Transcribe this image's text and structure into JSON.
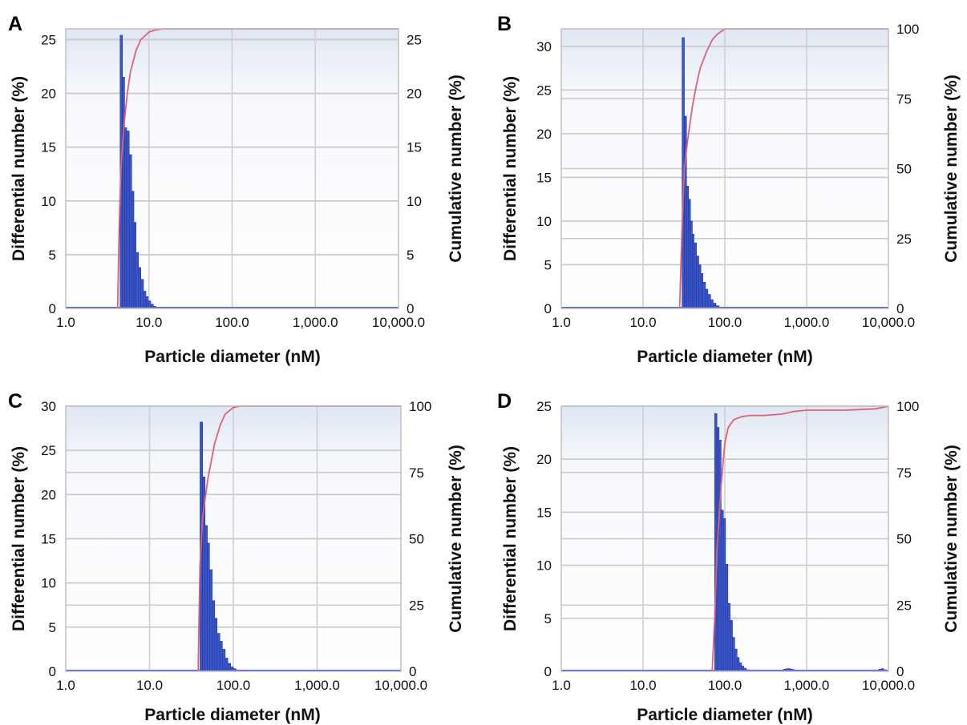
{
  "chart_data": [
    {
      "type": "bar",
      "panel": "A",
      "xlabel": "Particle diameter (nM)",
      "ylabel": "Differential number (%)",
      "y2label": "Cumulative number (%)",
      "xscale": "log",
      "xlim": [
        1,
        10000
      ],
      "x_ticks": [
        "1.0",
        "10.0",
        "100.0",
        "1,000.0",
        "10,000.0"
      ],
      "ylim": [
        0,
        26
      ],
      "y_ticks": [
        "0",
        "5",
        "10",
        "15",
        "20",
        "25"
      ],
      "y2lim": [
        0,
        26
      ],
      "y2_ticks": [
        "0",
        "5",
        "10",
        "15",
        "20",
        "25"
      ],
      "grid": true,
      "bars": {
        "x": [
          4.5,
          4.8,
          5.1,
          5.4,
          5.8,
          6.2,
          6.6,
          7.0,
          7.5,
          8.0,
          8.6,
          9.2,
          9.8,
          10.5,
          11.3,
          12.1
        ],
        "values": [
          25.4,
          21.5,
          16.8,
          16.5,
          14.3,
          10.9,
          8.0,
          5.2,
          3.8,
          2.7,
          1.6,
          1.1,
          0.7,
          0.4,
          0.2,
          0.1
        ]
      },
      "cumulative": {
        "x": [
          4.2,
          4.4,
          4.6,
          5.0,
          5.5,
          6.0,
          7.0,
          8.0,
          10.0,
          12.0,
          15.0,
          10000
        ],
        "values": [
          0,
          8,
          13,
          17,
          20,
          22,
          24,
          25,
          25.7,
          25.9,
          26,
          26
        ]
      }
    },
    {
      "type": "bar",
      "panel": "B",
      "xlabel": "Particle diameter (nM)",
      "ylabel": "Differential number (%)",
      "y2label": "Cumulative number (%)",
      "xscale": "log",
      "xlim": [
        1,
        10000
      ],
      "x_ticks": [
        "1.0",
        "10.0",
        "100.0",
        "1,000.0",
        "10,000.0"
      ],
      "ylim": [
        0,
        32
      ],
      "y_ticks": [
        "0",
        "5",
        "10",
        "15",
        "20",
        "25",
        "30"
      ],
      "y2lim": [
        0,
        100
      ],
      "y2_ticks": [
        "0",
        "25",
        "50",
        "75",
        "100"
      ],
      "grid": true,
      "bars": {
        "x": [
          30,
          32,
          34,
          36,
          38,
          40,
          42,
          45,
          48,
          51,
          54,
          58,
          62,
          67,
          72,
          78,
          85,
          92
        ],
        "values": [
          31,
          22,
          14,
          12.5,
          10,
          8.5,
          7.5,
          6,
          5,
          4,
          3,
          2.2,
          1.6,
          1.0,
          0.6,
          0.3,
          0.15,
          0.05
        ]
      },
      "cumulative": {
        "x": [
          28,
          30,
          32,
          35,
          40,
          45,
          50,
          60,
          70,
          80,
          100,
          10000
        ],
        "values": [
          0,
          30,
          50,
          60,
          72,
          80,
          86,
          92,
          96,
          98,
          100,
          100
        ]
      }
    },
    {
      "type": "bar",
      "panel": "C",
      "xlabel": "Particle diameter (nM)",
      "ylabel": "Differential number (%)",
      "y2label": "Cumulative number (%)",
      "xscale": "log",
      "xlim": [
        1,
        10000
      ],
      "x_ticks": [
        "1.0",
        "10.0",
        "100.0",
        "1,000.0",
        "10,000.0"
      ],
      "ylim": [
        0,
        30
      ],
      "y_ticks": [
        "0",
        "5",
        "10",
        "15",
        "20",
        "25",
        "30"
      ],
      "y2lim": [
        0,
        100
      ],
      "y2_ticks": [
        "0",
        "25",
        "50",
        "75",
        "100"
      ],
      "grid": true,
      "bars": {
        "x": [
          40,
          43,
          46,
          49,
          52,
          56,
          60,
          64,
          69,
          74,
          80,
          86,
          93,
          100,
          108,
          116
        ],
        "values": [
          28.2,
          22,
          16.5,
          14.5,
          11.5,
          8,
          6,
          4.3,
          3.4,
          2.5,
          1.5,
          0.9,
          0.5,
          0.3,
          0.15,
          0.05
        ]
      },
      "cumulative": {
        "x": [
          38,
          40,
          43,
          46,
          50,
          55,
          60,
          70,
          80,
          100,
          120,
          10000
        ],
        "values": [
          0,
          40,
          58,
          65,
          73,
          80,
          86,
          93,
          97,
          99.5,
          100,
          100
        ]
      }
    },
    {
      "type": "bar",
      "panel": "D",
      "xlabel": "Particle diameter (nM)",
      "ylabel": "Differential number (%)",
      "y2label": "Cumulative number (%)",
      "xscale": "log",
      "xlim": [
        1,
        10000
      ],
      "x_ticks": [
        "1.0",
        "10.0",
        "100.0",
        "1,000.0",
        "10,000.0"
      ],
      "ylim": [
        0,
        25
      ],
      "y_ticks": [
        "0",
        "5",
        "10",
        "15",
        "20",
        "25"
      ],
      "y2lim": [
        0,
        100
      ],
      "y2_ticks": [
        "0",
        "25",
        "50",
        "75",
        "100"
      ],
      "grid": true,
      "bars": {
        "x": [
          75,
          80,
          85,
          90,
          96,
          102,
          109,
          116,
          124,
          132,
          141,
          150,
          160,
          170,
          182,
          520,
          560,
          600,
          640,
          680,
          7600,
          8200,
          8800
        ],
        "values": [
          24.3,
          23,
          21.8,
          15.2,
          14.4,
          10.1,
          6.4,
          4.8,
          3.2,
          2.1,
          1.3,
          0.8,
          0.5,
          0.3,
          0.15,
          0.2,
          0.25,
          0.25,
          0.2,
          0.15,
          0.2,
          0.25,
          0.15
        ]
      },
      "cumulative": {
        "x": [
          70,
          75,
          80,
          90,
          100,
          110,
          130,
          160,
          200,
          300,
          500,
          700,
          1000,
          3000,
          7000,
          10000
        ],
        "values": [
          0,
          20,
          45,
          70,
          86,
          92,
          95,
          96,
          96.5,
          96.5,
          97,
          98,
          98.5,
          98.5,
          99,
          100
        ]
      }
    }
  ]
}
